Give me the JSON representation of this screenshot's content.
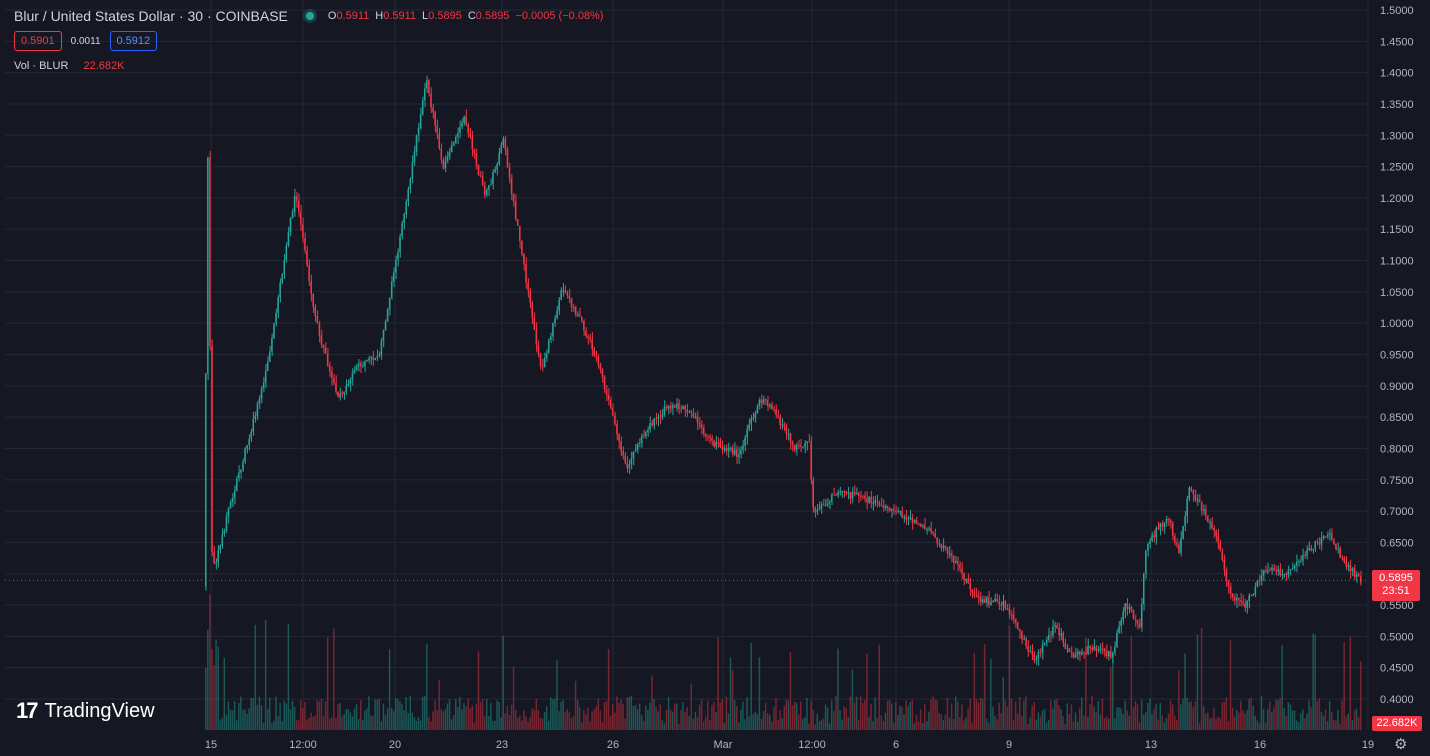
{
  "header": {
    "symbol_title": "Blur / United States Dollar · 30 · COINBASE",
    "open_label": "O",
    "open_value": "0.5911",
    "high_label": "H",
    "high_value": "0.5911",
    "low_label": "L",
    "low_value": "0.5895",
    "close_label": "C",
    "close_value": "0.5895",
    "change": "−0.0005 (−0.08%)"
  },
  "bid_ask": {
    "bid": "0.5901",
    "spread": "0.0011",
    "ask": "0.5912"
  },
  "volume_legend": {
    "label": "Vol · BLUR",
    "value": "22.682K"
  },
  "logo": {
    "name": "TradingView",
    "mark": "17"
  },
  "price_tag": {
    "price": "0.5895",
    "countdown": "23:51"
  },
  "volume_tag": "22.682K",
  "colors": {
    "background": "#151823",
    "up": "#26a69a",
    "down": "#f23645",
    "grid": "#232735",
    "ask": "#2962ff"
  },
  "icons": {
    "settings": "gear-icon"
  },
  "chart_data": {
    "type": "candlestick",
    "ylim": [
      0.37,
      1.5
    ],
    "y_ticks": [
      "1.5000",
      "1.4500",
      "1.4000",
      "1.3500",
      "1.3000",
      "1.2500",
      "1.2000",
      "1.1500",
      "1.1000",
      "1.0500",
      "1.0000",
      "0.9500",
      "0.9000",
      "0.8500",
      "0.8000",
      "0.7500",
      "0.7000",
      "0.6500",
      "0.6000",
      "0.5500",
      "0.5000",
      "0.4500",
      "0.4000"
    ],
    "x_ticks": [
      "15",
      "12:00",
      "20",
      "23",
      "26",
      "Mar",
      "12:00",
      "6",
      "9",
      "13",
      "16",
      "19"
    ],
    "current_price": 0.5895,
    "price_path": [
      [
        0,
        0.58
      ],
      [
        0.3,
        1.28
      ],
      [
        0.6,
        0.6
      ],
      [
        2.0,
        0.72
      ],
      [
        3.5,
        0.84
      ],
      [
        4.5,
        0.93
      ],
      [
        6.5,
        1.21
      ],
      [
        8.0,
        1.0
      ],
      [
        9.5,
        0.88
      ],
      [
        11.0,
        0.93
      ],
      [
        12.5,
        0.95
      ],
      [
        14.5,
        1.21
      ],
      [
        15.8,
        1.39
      ],
      [
        17.0,
        1.25
      ],
      [
        18.5,
        1.33
      ],
      [
        20.0,
        1.2
      ],
      [
        21.3,
        1.29
      ],
      [
        22.6,
        1.11
      ],
      [
        24.0,
        0.92
      ],
      [
        25.5,
        1.06
      ],
      [
        27.5,
        0.97
      ],
      [
        29.0,
        0.86
      ],
      [
        30.0,
        0.77
      ],
      [
        31.5,
        0.83
      ],
      [
        33.0,
        0.87
      ],
      [
        34.5,
        0.86
      ],
      [
        36.0,
        0.81
      ],
      [
        38.0,
        0.79
      ],
      [
        39.5,
        0.88
      ],
      [
        40.5,
        0.86
      ],
      [
        42.0,
        0.8
      ],
      [
        43.0,
        0.81
      ],
      [
        43.3,
        0.7
      ],
      [
        45.0,
        0.73
      ],
      [
        47.0,
        0.72
      ],
      [
        49.0,
        0.7
      ],
      [
        51.0,
        0.68
      ],
      [
        53.0,
        0.63
      ],
      [
        55.0,
        0.56
      ],
      [
        57.0,
        0.55
      ],
      [
        59.0,
        0.46
      ],
      [
        60.5,
        0.52
      ],
      [
        61.5,
        0.47
      ],
      [
        63.0,
        0.48
      ],
      [
        64.5,
        0.47
      ],
      [
        65.5,
        0.55
      ],
      [
        66.5,
        0.52
      ],
      [
        67.0,
        0.65
      ],
      [
        68.5,
        0.69
      ],
      [
        69.3,
        0.63
      ],
      [
        70.0,
        0.74
      ],
      [
        72.0,
        0.66
      ],
      [
        73.0,
        0.56
      ],
      [
        74.0,
        0.55
      ],
      [
        75.5,
        0.61
      ],
      [
        77.0,
        0.6
      ],
      [
        78.5,
        0.64
      ],
      [
        80.0,
        0.66
      ],
      [
        81.0,
        0.62
      ],
      [
        82.2,
        0.5895
      ]
    ]
  }
}
